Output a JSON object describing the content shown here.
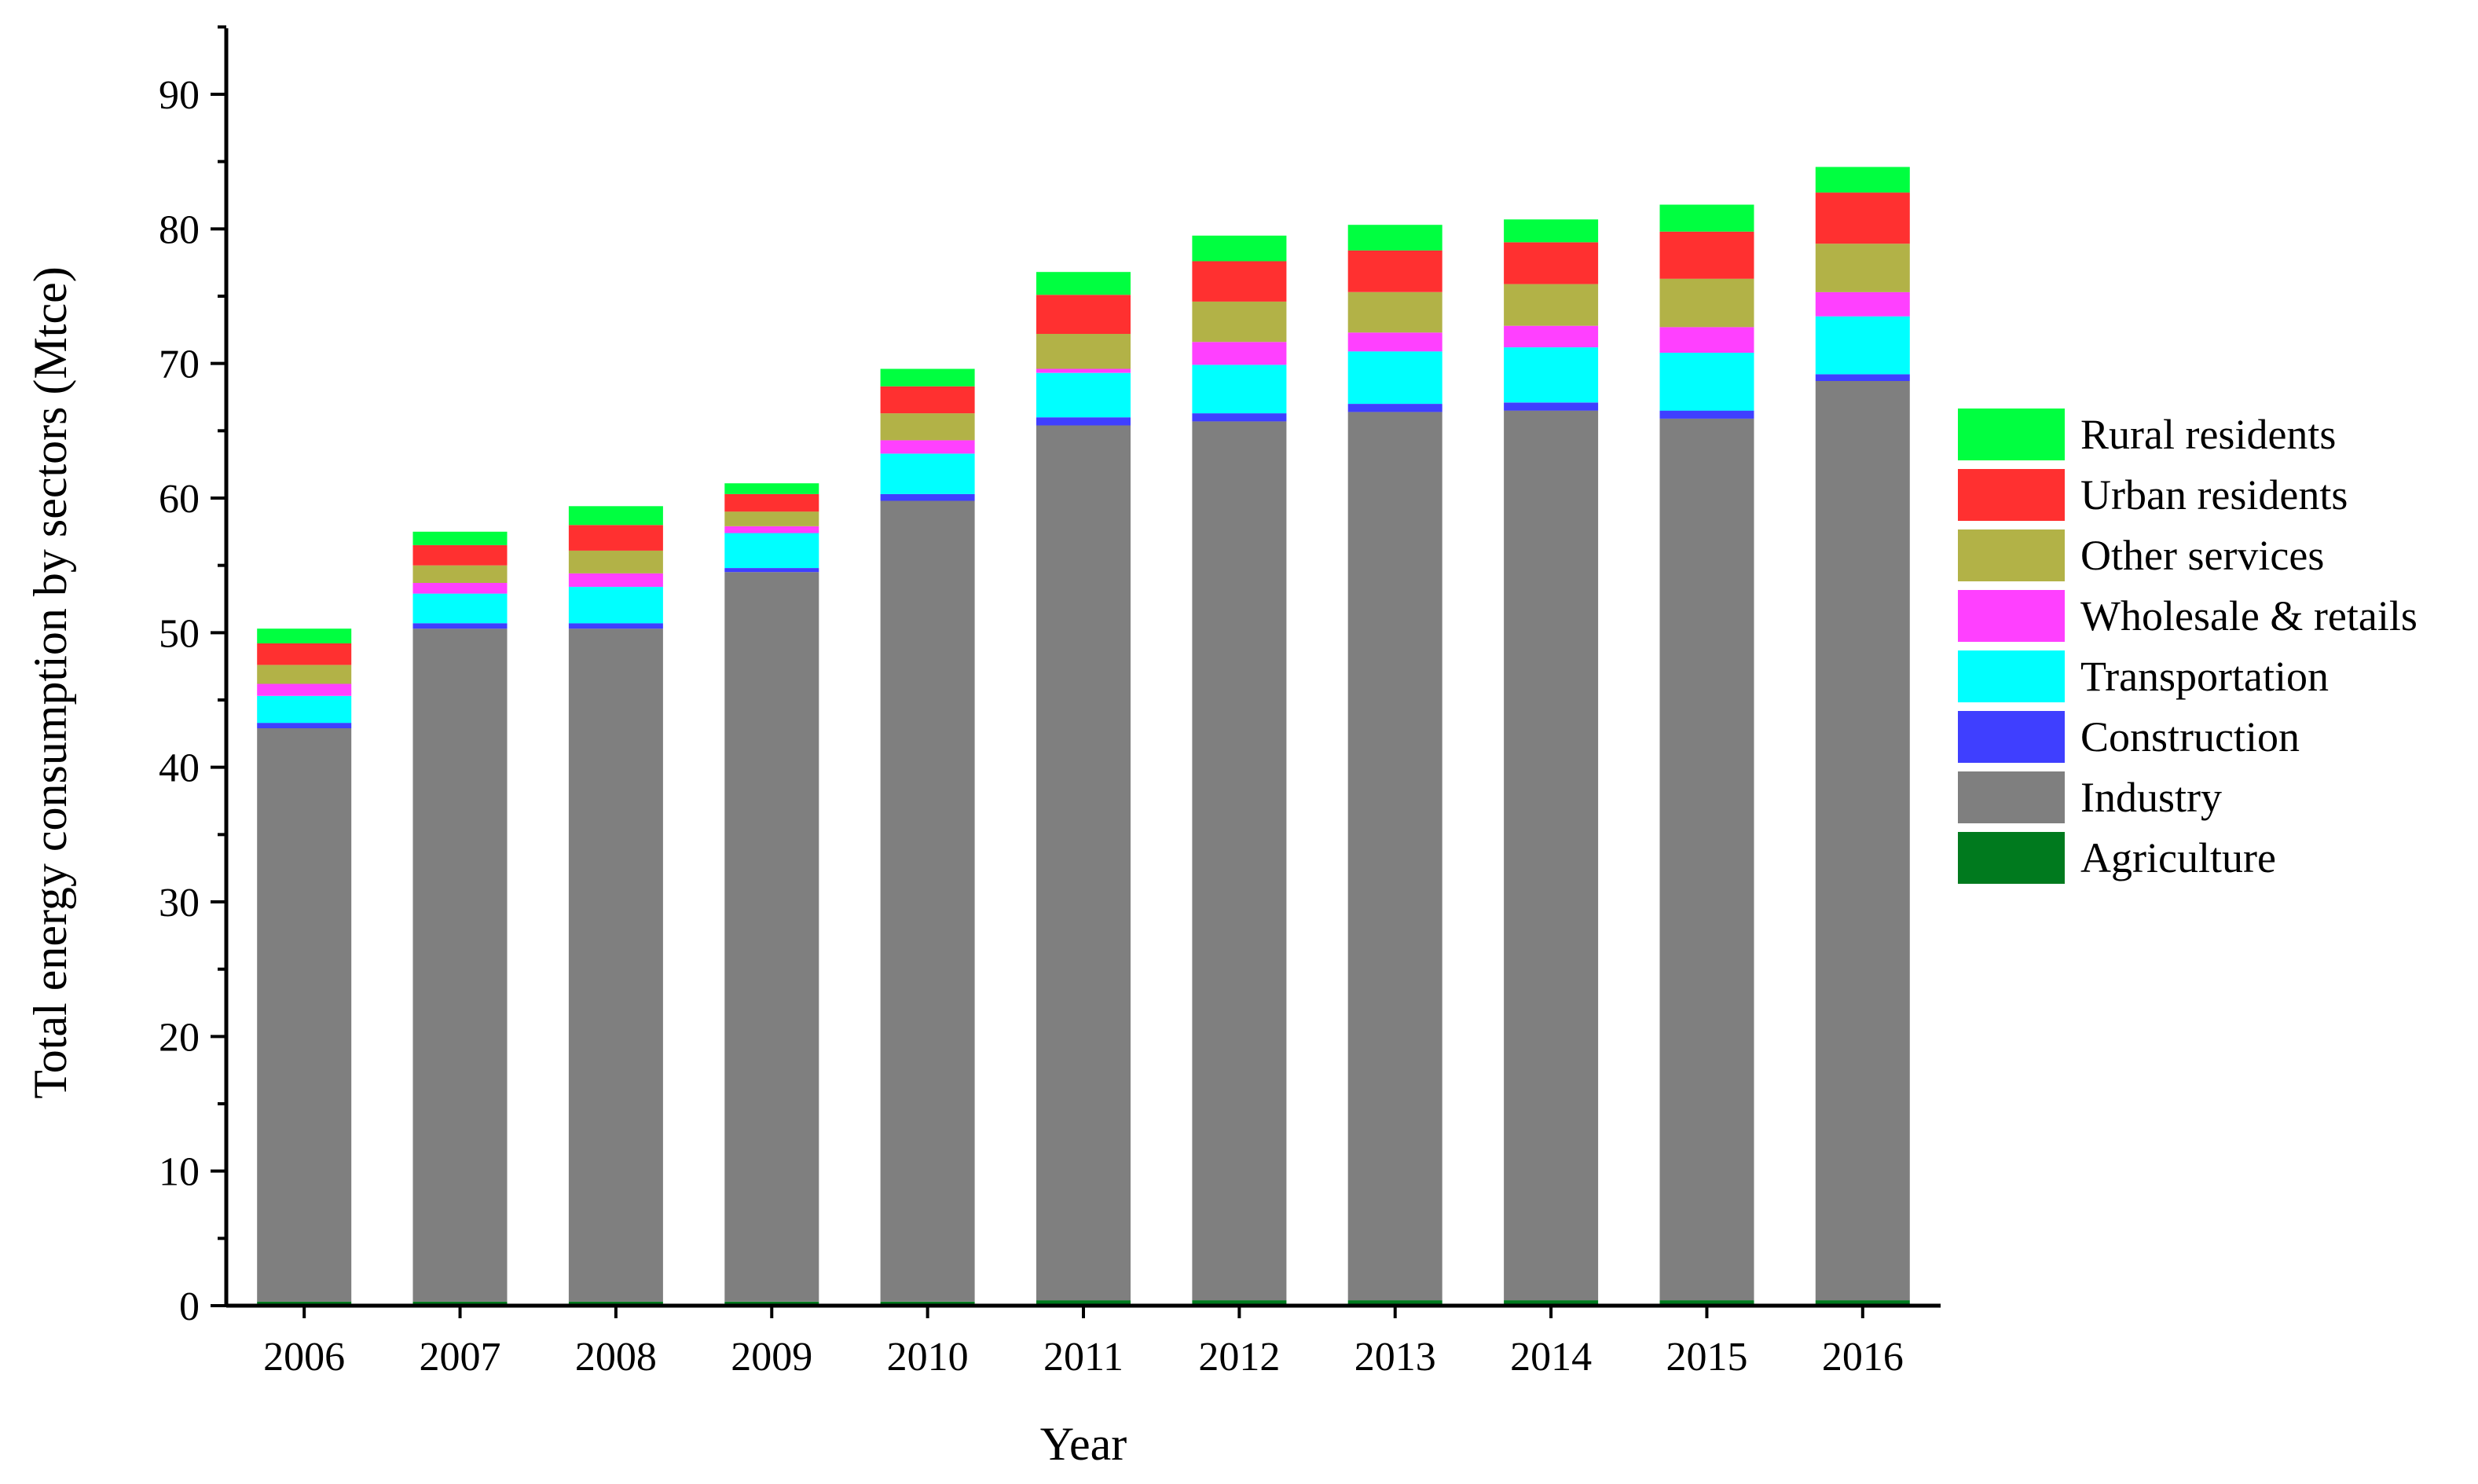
{
  "chart_data": {
    "type": "bar",
    "stacked": true,
    "title": "",
    "xlabel": "Year",
    "ylabel": "Total energy consumption by sectors (Mtce)",
    "ylim": [
      0,
      95
    ],
    "yticks": [
      0,
      10,
      20,
      30,
      40,
      50,
      60,
      70,
      80,
      90
    ],
    "categories": [
      "2006",
      "2007",
      "2008",
      "2009",
      "2010",
      "2011",
      "2012",
      "2013",
      "2014",
      "2015",
      "2016"
    ],
    "series": [
      {
        "name": "Agriculture",
        "color": "#007a1e",
        "values": [
          0.3,
          0.3,
          0.3,
          0.3,
          0.3,
          0.4,
          0.4,
          0.4,
          0.4,
          0.4,
          0.4
        ]
      },
      {
        "name": "Industry",
        "color": "#7f7f7f",
        "values": [
          42.6,
          50.0,
          50.0,
          54.2,
          59.5,
          65.0,
          65.3,
          66.0,
          66.1,
          65.5,
          68.3
        ]
      },
      {
        "name": "Construction",
        "color": "#3f3fff",
        "values": [
          0.4,
          0.4,
          0.4,
          0.3,
          0.5,
          0.6,
          0.6,
          0.6,
          0.6,
          0.6,
          0.5
        ]
      },
      {
        "name": "Transportation",
        "color": "#00ffff",
        "values": [
          2.0,
          2.2,
          2.7,
          2.6,
          3.0,
          3.3,
          3.6,
          3.9,
          4.1,
          4.3,
          4.3
        ]
      },
      {
        "name": "Wholesale & retails",
        "color": "#ff40ff",
        "values": [
          0.9,
          0.8,
          1.0,
          0.5,
          1.0,
          0.3,
          1.7,
          1.4,
          1.6,
          1.9,
          1.8
        ]
      },
      {
        "name": "Other services",
        "color": "#b2b247",
        "values": [
          1.4,
          1.3,
          1.7,
          1.1,
          2.0,
          2.6,
          3.0,
          3.0,
          3.1,
          3.6,
          3.6
        ]
      },
      {
        "name": "Urban residents",
        "color": "#ff3030",
        "values": [
          1.6,
          1.5,
          1.9,
          1.3,
          2.0,
          2.9,
          3.0,
          3.1,
          3.1,
          3.5,
          3.8
        ]
      },
      {
        "name": "Rural residents",
        "color": "#00ff40",
        "values": [
          1.1,
          1.0,
          1.4,
          0.8,
          1.3,
          1.7,
          1.9,
          1.9,
          1.7,
          2.0,
          1.9
        ]
      }
    ],
    "legend_order": [
      "Rural residents",
      "Urban residents",
      "Other services",
      "Wholesale & retails",
      "Transportation",
      "Construction",
      "Industry",
      "Agriculture"
    ],
    "legend_position": "right",
    "grid": false
  }
}
